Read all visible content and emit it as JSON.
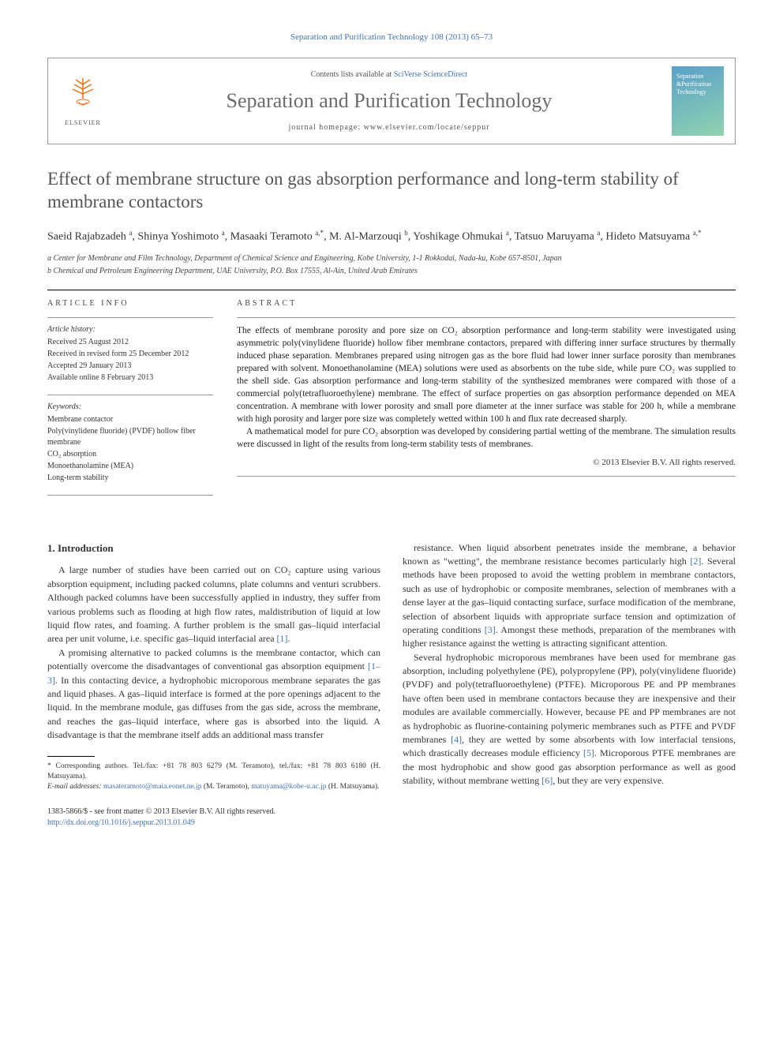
{
  "citation": "Separation and Purification Technology 108 (2013) 65–73",
  "header": {
    "contents_prefix": "Contents lists available at ",
    "contents_link": "SciVerse ScienceDirect",
    "journal_name": "Separation and Purification Technology",
    "home_prefix": "journal homepage: ",
    "home_url": "www.elsevier.com/locate/seppur",
    "publisher": "ELSEVIER",
    "cover_line1": "Separation",
    "cover_line2": "&Purification",
    "cover_line3": "Technology"
  },
  "title": "Effect of membrane structure on gas absorption performance and long-term stability of membrane contactors",
  "authors_html": "Saeid Rajabzadeh <sup>a</sup>, Shinya Yoshimoto <sup>a</sup>, Masaaki Teramoto <sup>a,*</sup>, M. Al-Marzouqi <sup>b</sup>, Yoshikage Ohmukai <sup>a</sup>, Tatsuo Maruyama <sup>a</sup>, Hideto Matsuyama <sup>a,*</sup>",
  "affiliations": [
    "a Center for Membrane and Film Technology, Department of Chemical Science and Engineering, Kobe University, 1-1 Rokkodai, Nada-ku, Kobe 657-8501, Japan",
    "b Chemical and Petroleum Engineering Department, UAE University, P.O. Box 17555, Al-Ain, United Arab Emirates"
  ],
  "article_info": {
    "label": "ARTICLE INFO",
    "history_hd": "Article history:",
    "history": [
      "Received 25 August 2012",
      "Received in revised form 25 December 2012",
      "Accepted 29 January 2013",
      "Available online 8 February 2013"
    ],
    "keywords_hd": "Keywords:",
    "keywords": [
      "Membrane contactor",
      "Poly(vinylidene fluoride) (PVDF) hollow fiber membrane",
      "CO₂ absorption",
      "Monoethanolamine (MEA)",
      "Long-term stability"
    ]
  },
  "abstract": {
    "label": "ABSTRACT",
    "paragraphs": [
      "The effects of membrane porosity and pore size on CO₂ absorption performance and long-term stability were investigated using asymmetric poly(vinylidene fluoride) hollow fiber membrane contactors, prepared with differing inner surface structures by thermally induced phase separation. Membranes prepared using nitrogen gas as the bore fluid had lower inner surface porosity than membranes prepared with solvent. Monoethanolamine (MEA) solutions were used as absorbents on the tube side, while pure CO₂ was supplied to the shell side. Gas absorption performance and long-term stability of the synthesized membranes were compared with those of a commercial poly(tetrafluoroethylene) membrane. The effect of surface properties on gas absorption performance depended on MEA concentration. A membrane with lower porosity and small pore diameter at the inner surface was stable for 200 h, while a membrane with high porosity and larger pore size was completely wetted within 100 h and flux rate decreased sharply.",
      "A mathematical model for pure CO₂ absorption was developed by considering partial wetting of the membrane. The simulation results were discussed in light of the results from long-term stability tests of membranes."
    ],
    "copyright": "© 2013 Elsevier B.V. All rights reserved."
  },
  "body": {
    "section_heading": "1. Introduction",
    "left": [
      "A large number of studies have been carried out on CO₂ capture using various absorption equipment, including packed columns, plate columns and venturi scrubbers. Although packed columns have been successfully applied in industry, they suffer from various problems such as flooding at high flow rates, maldistribution of liquid at low liquid flow rates, and foaming. A further problem is the small gas–liquid interfacial area per unit volume, i.e. specific gas–liquid interfacial area [1].",
      "A promising alternative to packed columns is the membrane contactor, which can potentially overcome the disadvantages of conventional gas absorption equipment [1–3]. In this contacting device, a hydrophobic microporous membrane separates the gas and liquid phases. A gas–liquid interface is formed at the pore openings adjacent to the liquid. In the membrane module, gas diffuses from the gas side, across the membrane, and reaches the gas–liquid interface, where gas is absorbed into the liquid. A disadvantage is that the membrane itself adds an additional mass transfer"
    ],
    "right": [
      "resistance. When liquid absorbent penetrates inside the membrane, a behavior known as \"wetting\", the membrane resistance becomes particularly high [2]. Several methods have been proposed to avoid the wetting problem in membrane contactors, such as use of hydrophobic or composite membranes, selection of membranes with a dense layer at the gas–liquid contacting surface, surface modification of the membrane, selection of absorbent liquids with appropriate surface tension and optimization of operating conditions [3]. Amongst these methods, preparation of the membranes with higher resistance against the wetting is attracting significant attention.",
      "Several hydrophobic microporous membranes have been used for membrane gas absorption, including polyethylene (PE), polypropylene (PP), poly(vinylidene fluoride) (PVDF) and poly(tetrafluoroethylene) (PTFE). Microporous PE and PP membranes have often been used in membrane contactors because they are inexpensive and their modules are available commercially. However, because PE and PP membranes are not as hydrophobic as fluorine-containing polymeric membranes such as PTFE and PVDF membranes [4], they are wetted by some absorbents with low interfacial tensions, which drastically decreases module efficiency [5]. Microporous PTFE membranes are the most hydrophobic and show good gas absorption performance as well as good stability, without membrane wetting [6], but they are very expensive."
    ]
  },
  "footnote": {
    "corr": "* Corresponding authors. Tel./fax: +81 78 803 6279 (M. Teramoto), tel./fax: +81 78 803 6180 (H. Matsuyama).",
    "email_label": "E-mail addresses:",
    "emails": [
      {
        "addr": "masateramoto@maia.eonet.ne.jp",
        "who": " (M. Teramoto), "
      },
      {
        "addr": "matuyama@kobe-u.ac.jp",
        "who": " (H. Matsuyama)."
      }
    ]
  },
  "bottom": {
    "line1": "1383-5866/$ - see front matter © 2013 Elsevier B.V. All rights reserved.",
    "doi": "http://dx.doi.org/10.1016/j.seppur.2013.01.049"
  },
  "colors": {
    "link": "#4272b0",
    "title_gray": "#555555",
    "orange": "#e9711c"
  }
}
